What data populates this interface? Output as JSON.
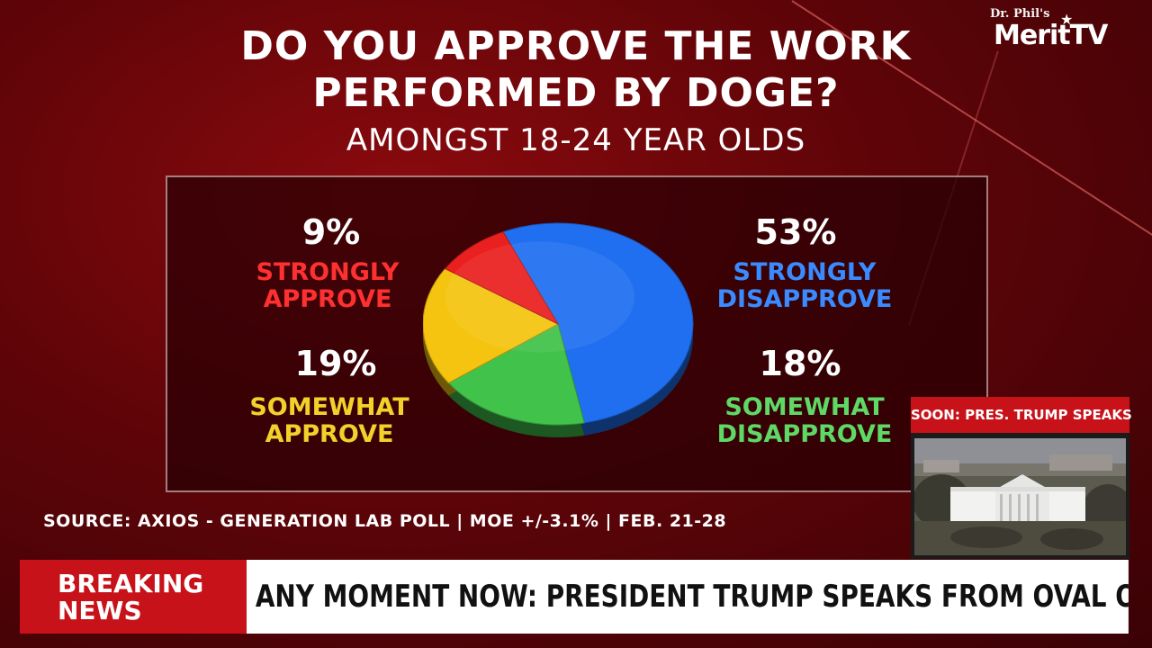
{
  "network": {
    "brand_small": "Dr. Phil's",
    "brand_main": "MeritTV"
  },
  "chart_data": {
    "type": "pie",
    "title": "DO YOU APPROVE THE WORK\nPERFORMED BY DOGE?",
    "subtitle": "AMONGST 18-24 YEAR OLDS",
    "slices": [
      {
        "name": "STRONGLY DISAPPROVE",
        "value": 53,
        "label": "53%",
        "color": "#1f6ff0",
        "label_color": "#3a8bff"
      },
      {
        "name": "SOMEWHAT DISAPPROVE",
        "value": 18,
        "label": "18%",
        "color": "#41c24a",
        "label_color": "#5fd866"
      },
      {
        "name": "SOMEWHAT APPROVE",
        "value": 19,
        "label": "19%",
        "color": "#f5c410",
        "label_color": "#f2d22a"
      },
      {
        "name": "STRONGLY APPROVE",
        "value": 9,
        "label": "9%",
        "color": "#ea2020",
        "label_color": "#ff3030"
      }
    ],
    "source": "SOURCE: AXIOS - GENERATION LAB POLL | MOE +/-3.1% | FEB. 21-28"
  },
  "inset": {
    "header": "SOON: PRES. TRUMP SPEAKS"
  },
  "ticker": {
    "tag": "BREAKING\nNEWS",
    "headline": "ANY MOMENT NOW: PRESIDENT TRUMP SPEAKS FROM OVAL OFFICE"
  }
}
